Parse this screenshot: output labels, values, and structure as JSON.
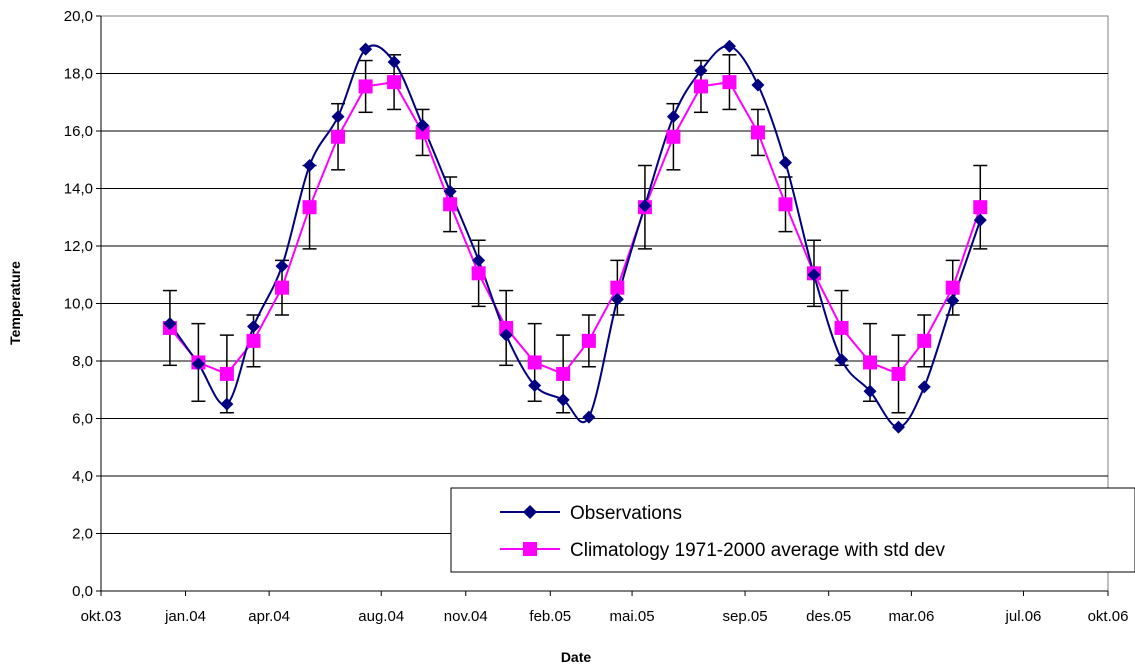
{
  "chart_data": {
    "type": "line",
    "xlabel": "Date",
    "ylabel": "Temperature",
    "ylim": [
      0,
      20
    ],
    "y_ticks": [
      "0,0",
      "2,0",
      "4,0",
      "6,0",
      "8,0",
      "10,0",
      "12,0",
      "14,0",
      "16,0",
      "18,0",
      "20,0"
    ],
    "x_ticks": [
      {
        "label": "okt.03",
        "date": "2003-10-01"
      },
      {
        "label": "jan.04",
        "date": "2004-01-01"
      },
      {
        "label": "apr.04",
        "date": "2004-04-01"
      },
      {
        "label": "aug.04",
        "date": "2004-08-01"
      },
      {
        "label": "nov.04",
        "date": "2004-11-01"
      },
      {
        "label": "feb.05",
        "date": "2005-02-01"
      },
      {
        "label": "mai.05",
        "date": "2005-05-01"
      },
      {
        "label": "sep.05",
        "date": "2005-09-01"
      },
      {
        "label": "des.05",
        "date": "2005-12-01"
      },
      {
        "label": "mar.06",
        "date": "2006-03-01"
      },
      {
        "label": "jul.06",
        "date": "2006-07-01"
      },
      {
        "label": "okt.06",
        "date": "2006-10-01"
      }
    ],
    "xlim": [
      "2003-10-01",
      "2006-10-01"
    ],
    "grid": {
      "horizontal": true,
      "vertical": false
    },
    "legend_placement": "bottom-right",
    "series": [
      {
        "name": "Observations",
        "color": "#000080",
        "marker": "diamond",
        "smooth": true,
        "points": [
          {
            "date": "2003-12-15",
            "value": 9.3
          },
          {
            "date": "2004-01-15",
            "value": 7.9
          },
          {
            "date": "2004-02-15",
            "value": 6.5
          },
          {
            "date": "2004-03-15",
            "value": 9.2
          },
          {
            "date": "2004-04-15",
            "value": 11.3
          },
          {
            "date": "2004-05-15",
            "value": 14.8
          },
          {
            "date": "2004-06-15",
            "value": 16.5
          },
          {
            "date": "2004-07-15",
            "value": 18.85
          },
          {
            "date": "2004-08-15",
            "value": 18.4
          },
          {
            "date": "2004-09-15",
            "value": 16.2
          },
          {
            "date": "2004-10-15",
            "value": 13.9
          },
          {
            "date": "2004-11-15",
            "value": 11.5
          },
          {
            "date": "2004-12-15",
            "value": 8.9
          },
          {
            "date": "2005-01-15",
            "value": 7.15
          },
          {
            "date": "2005-02-15",
            "value": 6.65
          },
          {
            "date": "2005-03-15",
            "value": 6.05
          },
          {
            "date": "2005-04-15",
            "value": 10.15
          },
          {
            "date": "2005-05-15",
            "value": 13.4
          },
          {
            "date": "2005-06-15",
            "value": 16.5
          },
          {
            "date": "2005-07-15",
            "value": 18.1
          },
          {
            "date": "2005-08-15",
            "value": 18.95
          },
          {
            "date": "2005-09-15",
            "value": 17.6
          },
          {
            "date": "2005-10-15",
            "value": 14.9
          },
          {
            "date": "2005-11-15",
            "value": 11.0
          },
          {
            "date": "2005-12-15",
            "value": 8.05
          },
          {
            "date": "2006-01-15",
            "value": 6.95
          },
          {
            "date": "2006-02-15",
            "value": 5.7
          },
          {
            "date": "2006-03-15",
            "value": 7.1
          },
          {
            "date": "2006-04-15",
            "value": 10.1
          },
          {
            "date": "2006-05-15",
            "value": 12.9
          }
        ]
      },
      {
        "name": "Climatology 1971-2000 average with std dev",
        "color": "#ff00ff",
        "marker": "square",
        "smooth": false,
        "points": [
          {
            "date": "2003-12-15",
            "value": 9.15,
            "std": 1.3
          },
          {
            "date": "2004-01-15",
            "value": 7.95,
            "std": 1.35
          },
          {
            "date": "2004-02-15",
            "value": 7.55,
            "std": 1.35
          },
          {
            "date": "2004-03-15",
            "value": 8.7,
            "std": 0.9
          },
          {
            "date": "2004-04-15",
            "value": 10.55,
            "std": 0.95
          },
          {
            "date": "2004-05-15",
            "value": 13.35,
            "std": 1.45
          },
          {
            "date": "2004-06-15",
            "value": 15.8,
            "std": 1.15
          },
          {
            "date": "2004-07-15",
            "value": 17.55,
            "std": 0.9
          },
          {
            "date": "2004-08-15",
            "value": 17.7,
            "std": 0.95
          },
          {
            "date": "2004-09-15",
            "value": 15.95,
            "std": 0.8
          },
          {
            "date": "2004-10-15",
            "value": 13.45,
            "std": 0.95
          },
          {
            "date": "2004-11-15",
            "value": 11.05,
            "std": 1.15
          },
          {
            "date": "2004-12-15",
            "value": 9.15,
            "std": 1.3
          },
          {
            "date": "2005-01-15",
            "value": 7.95,
            "std": 1.35
          },
          {
            "date": "2005-02-15",
            "value": 7.55,
            "std": 1.35
          },
          {
            "date": "2005-03-15",
            "value": 8.7,
            "std": 0.9
          },
          {
            "date": "2005-04-15",
            "value": 10.55,
            "std": 0.95
          },
          {
            "date": "2005-05-15",
            "value": 13.35,
            "std": 1.45
          },
          {
            "date": "2005-06-15",
            "value": 15.8,
            "std": 1.15
          },
          {
            "date": "2005-07-15",
            "value": 17.55,
            "std": 0.9
          },
          {
            "date": "2005-08-15",
            "value": 17.7,
            "std": 0.95
          },
          {
            "date": "2005-09-15",
            "value": 15.95,
            "std": 0.8
          },
          {
            "date": "2005-10-15",
            "value": 13.45,
            "std": 0.95
          },
          {
            "date": "2005-11-15",
            "value": 11.05,
            "std": 1.15
          },
          {
            "date": "2005-12-15",
            "value": 9.15,
            "std": 1.3
          },
          {
            "date": "2006-01-15",
            "value": 7.95,
            "std": 1.35
          },
          {
            "date": "2006-02-15",
            "value": 7.55,
            "std": 1.35
          },
          {
            "date": "2006-03-15",
            "value": 8.7,
            "std": 0.9
          },
          {
            "date": "2006-04-15",
            "value": 10.55,
            "std": 0.95
          },
          {
            "date": "2006-05-15",
            "value": 13.35,
            "std": 1.45
          }
        ]
      }
    ]
  }
}
